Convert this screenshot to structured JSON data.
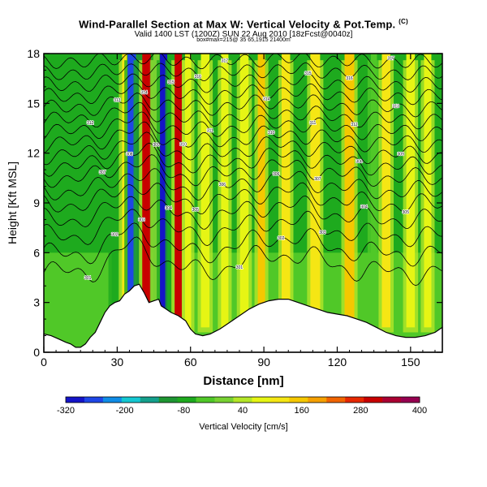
{
  "header": {
    "title": "Wind-Parallel Section at Max W: Vertical Velocity & Pot.Temp.",
    "title_mark": "(C)",
    "subtitle": "Valid 1400 LST (1200Z) SUN 22 Aug 2010 [18zFcst@0040z]",
    "subsubtitle": "box#max=215@ 35 65,1915 21400m"
  },
  "chart_data": {
    "type": "heatmap",
    "xlabel": "Distance [nm]",
    "ylabel": "Height [Kft MSL]",
    "xlim": [
      0,
      163
    ],
    "ylim": [
      0,
      18
    ],
    "x_ticks": [
      0,
      30,
      60,
      90,
      120,
      150
    ],
    "y_ticks": [
      0,
      3,
      6,
      9,
      12,
      15,
      18
    ],
    "colorbar": {
      "label": "Vertical Velocity [cm/s]",
      "tick_labels": [
        "-320",
        "-200",
        "-80",
        "40",
        "160",
        "280",
        "400"
      ],
      "tick_values": [
        -320,
        -200,
        -80,
        40,
        160,
        280,
        400
      ],
      "range": [
        -320,
        400
      ],
      "colors": [
        "#1414c8",
        "#1e46e6",
        "#0f8ce6",
        "#14c8d2",
        "#14a08c",
        "#1e9632",
        "#1eaa1e",
        "#50c828",
        "#78d232",
        "#b4e628",
        "#e6f514",
        "#f5e614",
        "#f5c800",
        "#f5a000",
        "#f06400",
        "#e62800",
        "#c80000",
        "#aa0032",
        "#960050"
      ]
    },
    "updraft_bands": [
      {
        "x": 29,
        "w": 2.5,
        "w_cms": -60
      },
      {
        "x": 33,
        "w": 2.0,
        "w_cms": 100
      },
      {
        "x": 36,
        "w": 3.5,
        "w_cms": -250
      },
      {
        "x": 39,
        "w": 2.0,
        "w_cms": -100
      },
      {
        "x": 42,
        "w": 3.5,
        "w_cms": 300
      },
      {
        "x": 46,
        "w": 2.5,
        "w_cms": 20
      },
      {
        "x": 49,
        "w": 3.0,
        "w_cms": -300
      },
      {
        "x": 52,
        "w": 2.0,
        "w_cms": -80
      },
      {
        "x": 55,
        "w": 3.0,
        "w_cms": 300
      },
      {
        "x": 59,
        "w": 2.5,
        "w_cms": 60
      },
      {
        "x": 66,
        "w": 3.5,
        "w_cms": 90
      },
      {
        "x": 74,
        "w": 3.0,
        "w_cms": 80
      },
      {
        "x": 82,
        "w": 3.5,
        "w_cms": 80
      },
      {
        "x": 89,
        "w": 3.0,
        "w_cms": 140
      },
      {
        "x": 99,
        "w": 3.5,
        "w_cms": 100
      },
      {
        "x": 111,
        "w": 4.0,
        "w_cms": 100
      },
      {
        "x": 125,
        "w": 4.0,
        "w_cms": 140
      },
      {
        "x": 135,
        "w": 2.5,
        "w_cms": -40
      },
      {
        "x": 140,
        "w": 3.5,
        "w_cms": 100
      },
      {
        "x": 150,
        "w": 3.5,
        "w_cms": 60
      },
      {
        "x": 157,
        "w": 3.0,
        "w_cms": 80
      }
    ],
    "terrain": [
      [
        0,
        1.1
      ],
      [
        3,
        1.0
      ],
      [
        6,
        0.8
      ],
      [
        9,
        0.6
      ],
      [
        11,
        0.5
      ],
      [
        13,
        0.3
      ],
      [
        15,
        0.3
      ],
      [
        17,
        0.5
      ],
      [
        19,
        0.9
      ],
      [
        21,
        1.2
      ],
      [
        23,
        1.8
      ],
      [
        25,
        2.4
      ],
      [
        27,
        2.8
      ],
      [
        29,
        3.0
      ],
      [
        31,
        3.1
      ],
      [
        33,
        3.5
      ],
      [
        35,
        3.7
      ],
      [
        37,
        4.0
      ],
      [
        39,
        4.1
      ],
      [
        41,
        3.6
      ],
      [
        43,
        3.0
      ],
      [
        45,
        3.1
      ],
      [
        47,
        3.2
      ],
      [
        48,
        2.8
      ],
      [
        50,
        2.6
      ],
      [
        52,
        2.4
      ],
      [
        55,
        2.2
      ],
      [
        58,
        1.9
      ],
      [
        60,
        1.4
      ],
      [
        62,
        1.1
      ],
      [
        65,
        1.0
      ],
      [
        68,
        1.1
      ],
      [
        72,
        1.4
      ],
      [
        76,
        1.8
      ],
      [
        80,
        2.2
      ],
      [
        84,
        2.6
      ],
      [
        88,
        2.9
      ],
      [
        92,
        3.1
      ],
      [
        96,
        3.2
      ],
      [
        100,
        3.2
      ],
      [
        104,
        3.0
      ],
      [
        108,
        2.8
      ],
      [
        112,
        2.6
      ],
      [
        116,
        2.4
      ],
      [
        120,
        2.3
      ],
      [
        124,
        2.2
      ],
      [
        128,
        2.0
      ],
      [
        132,
        1.8
      ],
      [
        136,
        1.5
      ],
      [
        140,
        1.2
      ],
      [
        144,
        1.0
      ],
      [
        148,
        0.9
      ],
      [
        152,
        0.9
      ],
      [
        156,
        1.0
      ],
      [
        160,
        1.2
      ],
      [
        163,
        1.5
      ]
    ],
    "theta_contours": [
      {
        "label": "301",
        "y": 4.8
      },
      {
        "label": "302",
        "y": 5.9
      },
      {
        "label": "303",
        "y": 7.0
      },
      {
        "label": "304",
        "y": 8.0
      },
      {
        "label": "305",
        "y": 8.9
      },
      {
        "label": "306",
        "y": 9.7
      },
      {
        "label": "307",
        "y": 10.5
      },
      {
        "label": "308",
        "y": 11.2
      },
      {
        "label": "309",
        "y": 11.9
      },
      {
        "label": "310",
        "y": 12.6
      },
      {
        "label": "311",
        "y": 13.3
      },
      {
        "label": "312",
        "y": 14.0
      },
      {
        "label": "313",
        "y": 14.7
      },
      {
        "label": "314",
        "y": 15.4
      },
      {
        "label": "315",
        "y": 16.1
      },
      {
        "label": "316",
        "y": 16.8
      },
      {
        "label": "317",
        "y": 17.5
      }
    ]
  }
}
